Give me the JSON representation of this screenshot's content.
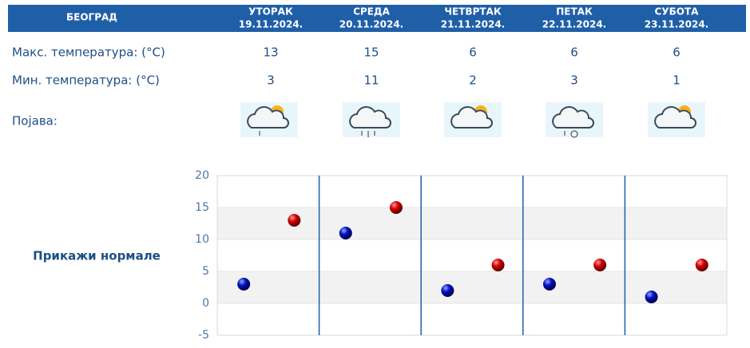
{
  "table": {
    "city": "БЕОГРАД",
    "days": [
      {
        "name": "УТОРАК",
        "date": "19.11.2024."
      },
      {
        "name": "СРЕДА",
        "date": "20.11.2024."
      },
      {
        "name": "ЧЕТВРТАК",
        "date": "21.11.2024."
      },
      {
        "name": "ПЕТАК",
        "date": "22.11.2024."
      },
      {
        "name": "СУБОТА",
        "date": "23.11.2024."
      }
    ],
    "rows": [
      "Макс. температура: (°C)",
      "Мин. температура: (°C)",
      "Појава:"
    ]
  },
  "link": "Прикажи нормале",
  "chart_data": {
    "type": "scatter",
    "ylim": [
      -5,
      20
    ],
    "yticks": [
      -5,
      0,
      5,
      10,
      15,
      20
    ],
    "series": [
      {
        "color": "#d40000",
        "values": [
          13,
          15,
          6,
          6,
          6
        ]
      },
      {
        "color": "#0010c0",
        "values": [
          3,
          11,
          2,
          3,
          1
        ]
      }
    ]
  }
}
